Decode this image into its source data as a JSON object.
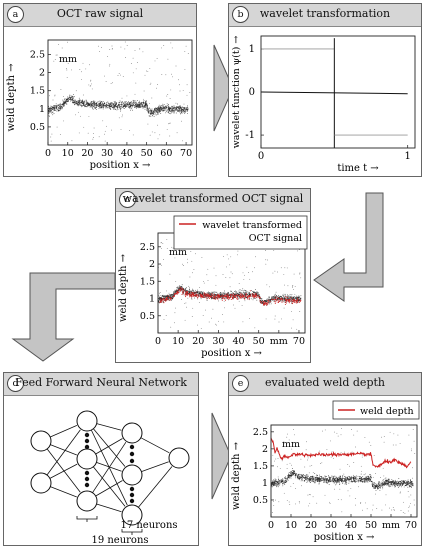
{
  "panels": {
    "a": {
      "badge": "a",
      "title": "OCT raw signal"
    },
    "b": {
      "badge": "b",
      "title": "wavelet transformation"
    },
    "c": {
      "badge": "c",
      "title": "wavelet transformed OCT signal"
    },
    "d": {
      "badge": "d",
      "title": "Feed Forward Neural Network"
    },
    "e": {
      "badge": "e",
      "title": "evaluated weld depth"
    }
  },
  "plot_labels": {
    "oct_ylabel": "weld depth →",
    "oct_unit": "mm",
    "oct_xlabel": "position x →",
    "oct_x_unit": "mm",
    "wavelet_ylabel": "wavelet function ψ(t) →",
    "wavelet_xlabel": "time t →"
  },
  "legends": {
    "c": "wavelet transformed OCT signal",
    "e": "weld depth"
  },
  "network": {
    "layer1_label": "19 neurons",
    "layer2_label": "17 neurons"
  },
  "colors": {
    "signal": "#222222",
    "red": "#cc2222",
    "header": "#d6d6d6",
    "arrow": "#c4c4c4"
  },
  "chart_data": [
    {
      "type": "scatter",
      "id": "a",
      "title": "OCT raw signal",
      "xlabel": "position x →",
      "ylabel": "weld depth →",
      "y_unit": "mm",
      "xlim": [
        0,
        73
      ],
      "ylim": [
        0,
        2.9
      ],
      "xticks": [
        0,
        10,
        20,
        30,
        40,
        50,
        60,
        70
      ],
      "yticks": [
        0.5,
        1,
        1.5,
        2,
        2.5
      ],
      "signal_profile_x": [
        0,
        2,
        7,
        9,
        11,
        12,
        14,
        20,
        30,
        40,
        50,
        51,
        53,
        55,
        58,
        60,
        70,
        72
      ],
      "signal_profile_y": [
        0.95,
        1.0,
        1.05,
        1.2,
        1.3,
        1.28,
        1.18,
        1.12,
        1.08,
        1.1,
        1.12,
        0.92,
        0.88,
        0.95,
        1.02,
        1.0,
        0.98,
        0.97
      ]
    },
    {
      "type": "line",
      "id": "b",
      "title": "wavelet transformation",
      "xlabel": "time t →",
      "ylabel": "wavelet function ψ(t) →",
      "xlim": [
        0,
        1.05
      ],
      "ylim": [
        -1.3,
        1.3
      ],
      "xticks": [
        0,
        1
      ],
      "yticks": [
        -1,
        0,
        1
      ],
      "x": [
        0,
        0.5,
        0.5,
        1
      ],
      "y": [
        1,
        1,
        -1,
        -1
      ]
    },
    {
      "type": "scatter",
      "id": "c",
      "title": "wavelet transformed OCT signal",
      "xlabel": "position x →",
      "ylabel": "weld depth →",
      "y_unit": "mm",
      "xlim": [
        0,
        73
      ],
      "ylim": [
        0,
        2.9
      ],
      "xticks": [
        0,
        10,
        20,
        30,
        40,
        50,
        60,
        70
      ],
      "yticks": [
        0.5,
        1,
        1.5,
        2,
        2.5
      ],
      "series": [
        {
          "name": "wavelet transformed OCT signal",
          "color": "#cc2222"
        }
      ]
    },
    {
      "type": "scatter",
      "id": "e",
      "title": "evaluated weld depth",
      "xlabel": "position x →",
      "ylabel": "weld depth →",
      "y_unit": "mm",
      "xlim": [
        0,
        73
      ],
      "ylim": [
        0,
        2.7
      ],
      "xticks": [
        0,
        10,
        20,
        30,
        40,
        50,
        60,
        70
      ],
      "yticks": [
        0.5,
        1,
        1.5,
        2,
        2.5
      ],
      "series": [
        {
          "name": "weld depth",
          "color": "#cc2222",
          "x": [
            0,
            1,
            2,
            3,
            5,
            7,
            9,
            10,
            12,
            15,
            20,
            30,
            40,
            48,
            50,
            51,
            53,
            55,
            57,
            60,
            62,
            65,
            68,
            70
          ],
          "y": [
            2.3,
            2.2,
            1.9,
            2.0,
            1.72,
            1.76,
            1.74,
            1.8,
            1.86,
            1.83,
            1.82,
            1.83,
            1.84,
            1.84,
            1.83,
            1.52,
            1.48,
            1.53,
            1.62,
            1.63,
            1.66,
            1.55,
            1.48,
            1.6
          ]
        }
      ]
    }
  ]
}
